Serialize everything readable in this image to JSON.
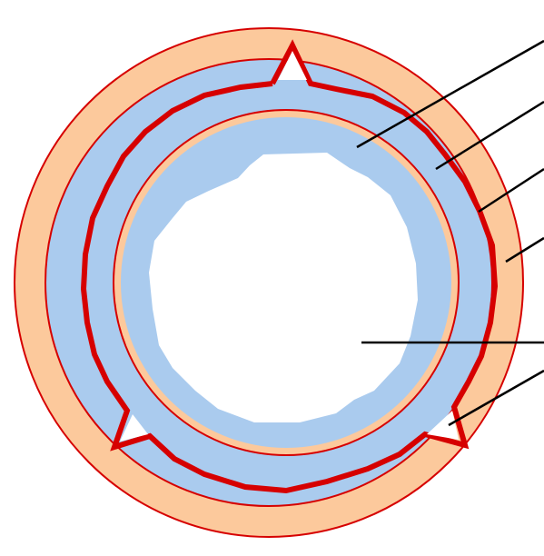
{
  "diagram": {
    "colors": {
      "outer_ring": "#fcc99c",
      "inner_ring": "#fcc99c",
      "band": "#aacbee",
      "lumen": "#ffffff",
      "outline": "#d60000",
      "wave_line": "#d60000",
      "leader": "#000000"
    },
    "label_count_note": "",
    "labels": []
  }
}
